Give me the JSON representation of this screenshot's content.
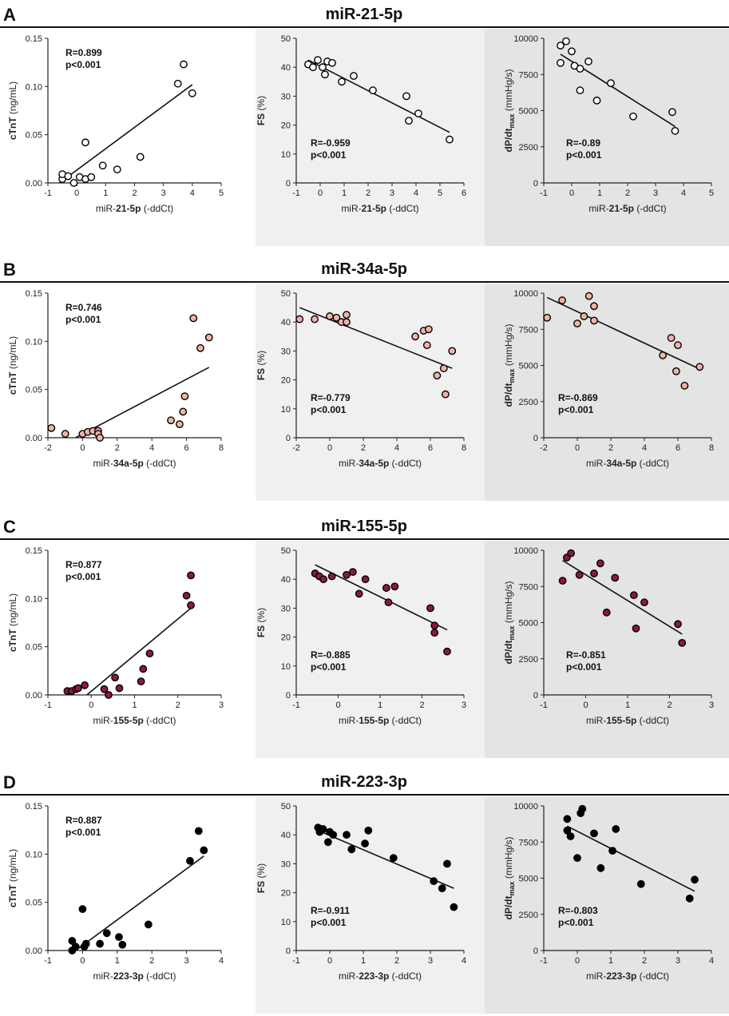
{
  "figure": {
    "colors": {
      "panel_bg_middle": "#f0f0f0",
      "panel_bg_right": "#e4e4e4",
      "point_stroke": "#000000",
      "fill_A": "#ffffff",
      "fill_B": "#f2b2a8",
      "fill_C": "#8c1748",
      "fill_D": "#000000"
    },
    "rows": [
      {
        "letter": "A",
        "title": "miR-21-5p",
        "fill": "#ffffff",
        "xlabel_prefix": "miR-",
        "xlabel_bold": "21-5p",
        "xlabel_suffix": " (-ddCt)",
        "x_ticks_left": [
          -1,
          0,
          1,
          2,
          3,
          4,
          5
        ],
        "x_ticks_mid": [
          -1,
          0,
          1,
          2,
          3,
          4,
          5,
          6
        ],
        "x_ticks_right": [
          -1,
          0,
          1,
          2,
          3,
          4,
          5
        ],
        "x_range_left": [
          -1,
          5
        ],
        "x_range_mid": [
          -1,
          6
        ],
        "x_range_right": [
          -1,
          5
        ]
      },
      {
        "letter": "B",
        "title": "miR-34a-5p",
        "fill": "#f2b2a8",
        "xlabel_prefix": "miR-",
        "xlabel_bold": "34a-5p",
        "xlabel_suffix": " (-ddCt)",
        "x_ticks_left": [
          -2,
          0,
          2,
          4,
          6,
          8
        ],
        "x_ticks_mid": [
          -2,
          0,
          2,
          4,
          6,
          8
        ],
        "x_ticks_right": [
          -2,
          0,
          2,
          4,
          6,
          8
        ],
        "x_range_left": [
          -2,
          8
        ],
        "x_range_mid": [
          -2,
          8
        ],
        "x_range_right": [
          -2,
          8
        ]
      },
      {
        "letter": "C",
        "title": "miR-155-5p",
        "fill": "#8c1748",
        "xlabel_prefix": "miR-",
        "xlabel_bold": "155-5p",
        "xlabel_suffix": " (-ddCt)",
        "x_ticks_left": [
          -1,
          0,
          1,
          2,
          3
        ],
        "x_ticks_mid": [
          -1,
          0,
          1,
          2,
          3
        ],
        "x_ticks_right": [
          -1,
          0,
          1,
          2,
          3
        ],
        "x_range_left": [
          -1,
          3
        ],
        "x_range_mid": [
          -1,
          3
        ],
        "x_range_right": [
          -1,
          3
        ]
      },
      {
        "letter": "D",
        "title": "miR-223-3p",
        "fill": "#000000",
        "xlabel_prefix": "miR-",
        "xlabel_bold": "223-3p",
        "xlabel_suffix": " (-ddCt)",
        "x_ticks_left": [
          -1,
          0,
          1,
          2,
          3,
          4
        ],
        "x_ticks_mid": [
          -1,
          0,
          1,
          2,
          3,
          4
        ],
        "x_ticks_right": [
          -1,
          0,
          1,
          2,
          3,
          4
        ],
        "x_range_left": [
          -1,
          4
        ],
        "x_range_mid": [
          -1,
          4
        ],
        "x_range_right": [
          -1,
          4
        ]
      }
    ],
    "y_axes": {
      "left": {
        "label": "cTnT",
        "unit": " (ng/mL)",
        "ticks": [
          "0.00",
          "0.05",
          "0.10",
          "0.15"
        ],
        "range": [
          0,
          0.15
        ]
      },
      "mid": {
        "label": "FS",
        "unit": " (%)",
        "ticks": [
          "0",
          "10",
          "20",
          "30",
          "40",
          "50"
        ],
        "range": [
          0,
          50
        ]
      },
      "right": {
        "label": "dP/dt",
        "label_sub": "max",
        "unit": " (mmHg/s)",
        "ticks": [
          "0",
          "2500",
          "5000",
          "7500",
          "10000"
        ],
        "range": [
          0,
          10000
        ]
      }
    }
  },
  "chart_data": [
    {
      "type": "scatter",
      "id": "A-left",
      "row": "A",
      "title": "miR-21-5p",
      "xlabel": "miR-21-5p (-ddCt)",
      "ylabel": "cTnT (ng/mL)",
      "xlim": [
        -1,
        5
      ],
      "ylim": [
        0,
        0.15
      ],
      "r": "R=0.899",
      "p": "p<0.001",
      "annot_pos": "top-left",
      "points": [
        [
          -0.5,
          0.004
        ],
        [
          -0.5,
          0.009
        ],
        [
          -0.3,
          0.007
        ],
        [
          -0.1,
          0.0
        ],
        [
          0.1,
          0.006
        ],
        [
          0.3,
          0.004
        ],
        [
          0.3,
          0.042
        ],
        [
          0.5,
          0.006
        ],
        [
          0.9,
          0.018
        ],
        [
          1.4,
          0.014
        ],
        [
          2.2,
          0.027
        ],
        [
          3.5,
          0.103
        ],
        [
          3.7,
          0.123
        ],
        [
          4.0,
          0.093
        ]
      ],
      "fit": [
        [
          -0.6,
          0.0
        ],
        [
          4.0,
          0.102
        ]
      ]
    },
    {
      "type": "scatter",
      "id": "A-mid",
      "row": "A",
      "title": "miR-21-5p",
      "xlabel": "miR-21-5p (-ddCt)",
      "ylabel": "FS (%)",
      "xlim": [
        -1,
        6
      ],
      "ylim": [
        0,
        50
      ],
      "r": "R=-0.959",
      "p": "p<0.001",
      "annot_pos": "bottom-left",
      "points": [
        [
          -0.5,
          41
        ],
        [
          -0.3,
          40
        ],
        [
          -0.1,
          42.5
        ],
        [
          0.1,
          40
        ],
        [
          0.2,
          37.5
        ],
        [
          0.3,
          42
        ],
        [
          0.5,
          41.5
        ],
        [
          0.9,
          35
        ],
        [
          1.4,
          37
        ],
        [
          2.2,
          32
        ],
        [
          3.6,
          30
        ],
        [
          3.7,
          21.5
        ],
        [
          4.1,
          24
        ],
        [
          5.4,
          15
        ]
      ],
      "fit": [
        [
          -0.5,
          42.5
        ],
        [
          5.4,
          17.5
        ]
      ]
    },
    {
      "type": "scatter",
      "id": "A-right",
      "row": "A",
      "title": "miR-21-5p",
      "xlabel": "miR-21-5p (-ddCt)",
      "ylabel": "dP/dtmax (mmHg/s)",
      "xlim": [
        -1,
        5
      ],
      "ylim": [
        0,
        10000
      ],
      "r": "R=-0.89",
      "p": "p<0.001",
      "annot_pos": "bottom-right",
      "points": [
        [
          -0.4,
          9500
        ],
        [
          -0.4,
          8300
        ],
        [
          -0.2,
          9800
        ],
        [
          0.0,
          9100
        ],
        [
          0.1,
          8100
        ],
        [
          0.3,
          7900
        ],
        [
          0.3,
          6400
        ],
        [
          0.6,
          8400
        ],
        [
          0.9,
          5700
        ],
        [
          1.4,
          6900
        ],
        [
          2.2,
          4600
        ],
        [
          3.6,
          4900
        ],
        [
          3.7,
          3600
        ]
      ],
      "fit": [
        [
          -0.4,
          8900
        ],
        [
          3.7,
          3900
        ]
      ]
    },
    {
      "type": "scatter",
      "id": "B-left",
      "row": "B",
      "title": "miR-34a-5p",
      "xlabel": "miR-34a-5p (-ddCt)",
      "ylabel": "cTnT (ng/mL)",
      "xlim": [
        -2,
        8
      ],
      "ylim": [
        0,
        0.15
      ],
      "r": "R=0.746",
      "p": "p<0.001",
      "annot_pos": "top-left",
      "points": [
        [
          -1.8,
          0.01
        ],
        [
          -1.0,
          0.004
        ],
        [
          0.0,
          0.004
        ],
        [
          0.3,
          0.006
        ],
        [
          0.6,
          0.007
        ],
        [
          0.9,
          0.007
        ],
        [
          0.9,
          0.004
        ],
        [
          1.0,
          0.0
        ],
        [
          5.1,
          0.018
        ],
        [
          5.6,
          0.014
        ],
        [
          5.8,
          0.027
        ],
        [
          5.9,
          0.043
        ],
        [
          6.4,
          0.124
        ],
        [
          6.8,
          0.093
        ],
        [
          7.3,
          0.104
        ]
      ],
      "fit": [
        [
          -0.4,
          0.0
        ],
        [
          7.3,
          0.073
        ]
      ]
    },
    {
      "type": "scatter",
      "id": "B-mid",
      "row": "B",
      "title": "miR-34a-5p",
      "xlabel": "miR-34a-5p (-ddCt)",
      "ylabel": "FS (%)",
      "xlim": [
        -2,
        8
      ],
      "ylim": [
        0,
        50
      ],
      "r": "R=-0.779",
      "p": "p<0.001",
      "annot_pos": "bottom-left",
      "points": [
        [
          -1.8,
          41
        ],
        [
          -0.9,
          41
        ],
        [
          0.0,
          42
        ],
        [
          0.4,
          41.5
        ],
        [
          0.7,
          40
        ],
        [
          1.0,
          40
        ],
        [
          1.0,
          42.5
        ],
        [
          5.1,
          35
        ],
        [
          5.6,
          37
        ],
        [
          5.8,
          32
        ],
        [
          5.9,
          37.5
        ],
        [
          6.4,
          21.5
        ],
        [
          6.8,
          24
        ],
        [
          6.9,
          15
        ],
        [
          7.3,
          30
        ]
      ],
      "fit": [
        [
          -1.8,
          45
        ],
        [
          7.3,
          24
        ]
      ]
    },
    {
      "type": "scatter",
      "id": "B-right",
      "row": "B",
      "title": "miR-34a-5p",
      "xlabel": "miR-34a-5p (-ddCt)",
      "ylabel": "dP/dtmax (mmHg/s)",
      "xlim": [
        -2,
        8
      ],
      "ylim": [
        0,
        10000
      ],
      "r": "R=-0.869",
      "p": "p<0.001",
      "annot_pos": "bottom-left",
      "points": [
        [
          -1.8,
          8300
        ],
        [
          -0.9,
          9500
        ],
        [
          0.0,
          7900
        ],
        [
          0.4,
          8400
        ],
        [
          0.7,
          9800
        ],
        [
          1.0,
          9100
        ],
        [
          1.0,
          8100
        ],
        [
          5.1,
          5700
        ],
        [
          5.6,
          6900
        ],
        [
          5.9,
          4600
        ],
        [
          6.0,
          6400
        ],
        [
          6.4,
          3600
        ],
        [
          7.3,
          4900
        ]
      ],
      "fit": [
        [
          -1.8,
          9700
        ],
        [
          7.3,
          4750
        ]
      ]
    },
    {
      "type": "scatter",
      "id": "C-left",
      "row": "C",
      "title": "miR-155-5p",
      "xlabel": "miR-155-5p (-ddCt)",
      "ylabel": "cTnT (ng/mL)",
      "xlim": [
        -1,
        3
      ],
      "ylim": [
        0,
        0.15
      ],
      "r": "R=0.877",
      "p": "p<0.001",
      "annot_pos": "top-left",
      "points": [
        [
          -0.55,
          0.004
        ],
        [
          -0.45,
          0.004
        ],
        [
          -0.35,
          0.006
        ],
        [
          -0.3,
          0.007
        ],
        [
          -0.15,
          0.01
        ],
        [
          0.3,
          0.006
        ],
        [
          0.4,
          0.0
        ],
        [
          0.55,
          0.018
        ],
        [
          0.65,
          0.007
        ],
        [
          1.15,
          0.014
        ],
        [
          1.2,
          0.027
        ],
        [
          1.35,
          0.043
        ],
        [
          2.2,
          0.103
        ],
        [
          2.3,
          0.124
        ],
        [
          2.3,
          0.093
        ]
      ],
      "fit": [
        [
          -0.1,
          0.0
        ],
        [
          2.3,
          0.09
        ]
      ]
    },
    {
      "type": "scatter",
      "id": "C-mid",
      "row": "C",
      "title": "miR-155-5p",
      "xlabel": "miR-155-5p (-ddCt)",
      "ylabel": "FS (%)",
      "xlim": [
        -1,
        3
      ],
      "ylim": [
        0,
        50
      ],
      "r": "R=-0.885",
      "p": "p<0.001",
      "annot_pos": "bottom-left",
      "points": [
        [
          -0.55,
          42
        ],
        [
          -0.45,
          41
        ],
        [
          -0.35,
          40
        ],
        [
          -0.15,
          41
        ],
        [
          0.2,
          41.5
        ],
        [
          0.35,
          42.5
        ],
        [
          0.5,
          35
        ],
        [
          0.65,
          40
        ],
        [
          1.15,
          37
        ],
        [
          1.2,
          32
        ],
        [
          1.35,
          37.5
        ],
        [
          2.2,
          30
        ],
        [
          2.3,
          24
        ],
        [
          2.3,
          21.5
        ],
        [
          2.6,
          15
        ]
      ],
      "fit": [
        [
          -0.55,
          45
        ],
        [
          2.6,
          22.5
        ]
      ]
    },
    {
      "type": "scatter",
      "id": "C-right",
      "row": "C",
      "title": "miR-155-5p",
      "xlabel": "miR-155-5p (-ddCt)",
      "ylabel": "dP/dtmax (mmHg/s)",
      "xlim": [
        -1,
        3
      ],
      "ylim": [
        0,
        10000
      ],
      "r": "R=-0.851",
      "p": "p<0.001",
      "annot_pos": "bottom-right",
      "points": [
        [
          -0.55,
          7900
        ],
        [
          -0.45,
          9500
        ],
        [
          -0.35,
          9800
        ],
        [
          -0.15,
          8300
        ],
        [
          0.2,
          8400
        ],
        [
          0.35,
          9100
        ],
        [
          0.5,
          5700
        ],
        [
          0.7,
          8100
        ],
        [
          1.15,
          6900
        ],
        [
          1.2,
          4600
        ],
        [
          1.4,
          6400
        ],
        [
          2.2,
          4900
        ],
        [
          2.3,
          3600
        ]
      ],
      "fit": [
        [
          -0.55,
          9300
        ],
        [
          2.3,
          4200
        ]
      ]
    },
    {
      "type": "scatter",
      "id": "D-left",
      "row": "D",
      "title": "miR-223-3p",
      "xlabel": "miR-223-3p (-ddCt)",
      "ylabel": "cTnT (ng/mL)",
      "xlim": [
        -1,
        4
      ],
      "ylim": [
        0,
        0.15
      ],
      "r": "R=0.887",
      "p": "p<0.001",
      "annot_pos": "top-left",
      "points": [
        [
          -0.3,
          0.0
        ],
        [
          -0.3,
          0.01
        ],
        [
          -0.2,
          0.004
        ],
        [
          0.0,
          0.043
        ],
        [
          0.05,
          0.004
        ],
        [
          0.1,
          0.007
        ],
        [
          0.5,
          0.007
        ],
        [
          0.7,
          0.018
        ],
        [
          1.05,
          0.014
        ],
        [
          1.15,
          0.006
        ],
        [
          1.9,
          0.027
        ],
        [
          3.1,
          0.093
        ],
        [
          3.35,
          0.124
        ],
        [
          3.5,
          0.104
        ]
      ],
      "fit": [
        [
          -0.2,
          0.0
        ],
        [
          3.5,
          0.098
        ]
      ]
    },
    {
      "type": "scatter",
      "id": "D-mid",
      "row": "D",
      "title": "miR-223-3p",
      "xlabel": "miR-223-3p (-ddCt)",
      "ylabel": "FS (%)",
      "xlim": [
        -1,
        4
      ],
      "ylim": [
        0,
        50
      ],
      "r": "R=-0.911",
      "p": "p<0.001",
      "annot_pos": "bottom-left",
      "points": [
        [
          -0.35,
          42.5
        ],
        [
          -0.3,
          41
        ],
        [
          -0.2,
          42
        ],
        [
          0.0,
          41
        ],
        [
          -0.05,
          37.5
        ],
        [
          0.1,
          40
        ],
        [
          0.5,
          40
        ],
        [
          0.65,
          35
        ],
        [
          1.05,
          37
        ],
        [
          1.15,
          41.5
        ],
        [
          1.9,
          32
        ],
        [
          3.1,
          24
        ],
        [
          3.35,
          21.5
        ],
        [
          3.5,
          30
        ],
        [
          3.7,
          15
        ]
      ],
      "fit": [
        [
          -0.35,
          41.5
        ],
        [
          3.7,
          21.5
        ]
      ]
    },
    {
      "type": "scatter",
      "id": "D-right",
      "row": "D",
      "title": "miR-223-3p",
      "xlabel": "miR-223-3p (-ddCt)",
      "ylabel": "dP/dtmax (mmHg/s)",
      "xlim": [
        -1,
        4
      ],
      "ylim": [
        0,
        10000
      ],
      "r": "R=-0.803",
      "p": "p<0.001",
      "annot_pos": "bottom-left",
      "points": [
        [
          -0.3,
          9100
        ],
        [
          -0.3,
          8300
        ],
        [
          -0.2,
          7900
        ],
        [
          0.0,
          6400
        ],
        [
          0.1,
          9500
        ],
        [
          0.15,
          9800
        ],
        [
          0.5,
          8100
        ],
        [
          0.7,
          5700
        ],
        [
          1.05,
          6900
        ],
        [
          1.15,
          8400
        ],
        [
          1.9,
          4600
        ],
        [
          3.35,
          3600
        ],
        [
          3.5,
          4900
        ]
      ],
      "fit": [
        [
          -0.3,
          8600
        ],
        [
          3.5,
          4100
        ]
      ]
    }
  ]
}
